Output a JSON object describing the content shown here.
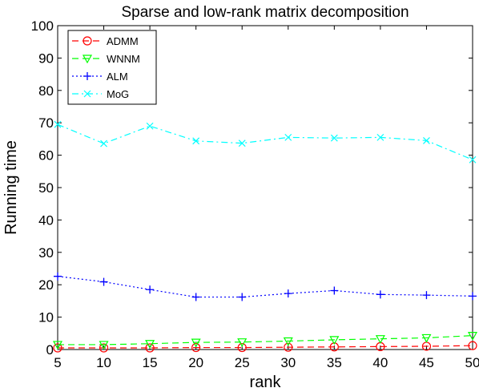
{
  "chart_data": {
    "type": "line",
    "title": "Sparse and low-rank matrix decomposition",
    "xlabel": "rank",
    "ylabel": "Running time",
    "x": [
      5,
      10,
      15,
      20,
      25,
      30,
      35,
      40,
      45,
      50
    ],
    "xlim": [
      5,
      50
    ],
    "ylim": [
      0,
      100
    ],
    "xticks": [
      5,
      10,
      15,
      20,
      25,
      30,
      35,
      40,
      45,
      50
    ],
    "yticks": [
      0,
      10,
      20,
      30,
      40,
      50,
      60,
      70,
      80,
      90,
      100
    ],
    "grid": false,
    "legend_position": "top-left",
    "series": [
      {
        "name": "ADMM",
        "color": "#ff0000",
        "dash": "dashed",
        "marker": "circle",
        "values": [
          0.5,
          0.5,
          0.5,
          0.6,
          0.6,
          0.7,
          0.8,
          0.9,
          1.0,
          1.2
        ]
      },
      {
        "name": "WNNM",
        "color": "#00ff00",
        "dash": "dashed",
        "marker": "triangle-down",
        "values": [
          1.5,
          1.5,
          1.8,
          2.2,
          2.3,
          2.6,
          3.0,
          3.3,
          3.6,
          4.3
        ]
      },
      {
        "name": "ALM",
        "color": "#0000ff",
        "dash": "dotted",
        "marker": "plus",
        "values": [
          22.6,
          20.9,
          18.5,
          16.2,
          16.2,
          17.3,
          18.2,
          17.0,
          16.8,
          16.5
        ]
      },
      {
        "name": "MoG",
        "color": "#00ffff",
        "dash": "dashdot",
        "marker": "x",
        "values": [
          69.5,
          63.6,
          69.0,
          64.4,
          63.7,
          65.5,
          65.3,
          65.5,
          64.5,
          58.6
        ]
      }
    ]
  }
}
